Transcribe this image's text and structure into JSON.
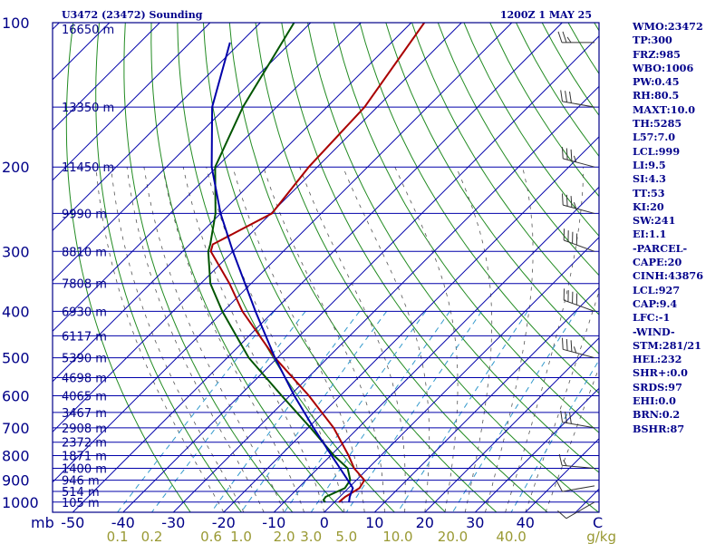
{
  "header": {
    "station": "U3472 (23472) Sounding",
    "valid": "1200Z  1 MAY 25"
  },
  "indices": [
    "WMO:23472",
    "TP:300",
    "FRZ:985",
    "WBO:1006",
    "PW:0.45",
    "RH:80.5",
    "MAXT:10.0",
    "TH:5285",
    "L57:7.0",
    "LCL:999",
    "LI:9.5",
    "SI:4.3",
    "TT:53",
    "KI:20",
    "SW:241",
    "EI:1.1",
    "-PARCEL-",
    "CAPE:20",
    "CINH:43876",
    "LCL:927",
    "CAP:9.4",
    "LFC:-1",
    "-WIND-",
    "STM:281/21",
    "HEL:232",
    "SHR+:0.0",
    "SRDS:97",
    "EHI:0.0",
    "BRN:0.2",
    "BSHR:87"
  ],
  "colors": {
    "isobar": "#0000aa",
    "isotherm": "#0000aa",
    "dry_adiabat": "#228b22",
    "mixing_ratio": "#3399cc",
    "moist_adiabat": "#555555",
    "temperature": "#aa0000",
    "dewpoint": "#005500",
    "parcel": "#0000aa",
    "label_blue": "#000088",
    "label_mixing": "#999933",
    "wind": "#333333"
  },
  "chart_data": {
    "type": "skew-t log-p sounding",
    "y_axis": {
      "quantity": "pressure",
      "unit": "mb",
      "scale": "log",
      "range": [
        1050,
        100
      ],
      "ticks": [
        100,
        200,
        300,
        400,
        500,
        600,
        700,
        800,
        900,
        1000
      ]
    },
    "x_axis": {
      "quantity": "temperature",
      "unit": "C",
      "skewed": true,
      "ticks": [
        -50,
        -40,
        -30,
        -20,
        -10,
        0,
        10,
        20,
        30,
        40
      ],
      "tick_labels": [
        "-50",
        "-40",
        "-30",
        "-20",
        "-10",
        "0",
        "10",
        "20",
        "30",
        "40"
      ],
      "unit_label": "mb",
      "corner_label": "C"
    },
    "mixing_ratio_axis": {
      "unit": "g/kg",
      "ticks": [
        0.1,
        0.2,
        0.6,
        1.0,
        2.0,
        3.0,
        5.0,
        10.0,
        20.0,
        40.0
      ],
      "tick_labels": [
        "0.1",
        "0.2",
        "0.6",
        "1.0",
        "2.0",
        "3.0",
        "5.0",
        "10.0",
        "20.0",
        "40.0"
      ]
    },
    "height_labels": [
      {
        "p": 103,
        "label": "16650 m"
      },
      {
        "p": 150,
        "label": "13350 m"
      },
      {
        "p": 200,
        "label": "11450 m"
      },
      {
        "p": 250,
        "label": "9990 m"
      },
      {
        "p": 300,
        "label": "8810 m"
      },
      {
        "p": 350,
        "label": "7808 m"
      },
      {
        "p": 400,
        "label": "6930 m"
      },
      {
        "p": 450,
        "label": "6117 m"
      },
      {
        "p": 500,
        "label": "5390 m"
      },
      {
        "p": 550,
        "label": "4698 m"
      },
      {
        "p": 600,
        "label": "4065 m"
      },
      {
        "p": 650,
        "label": "3467 m"
      },
      {
        "p": 700,
        "label": "2908 m"
      },
      {
        "p": 750,
        "label": "2372 m"
      },
      {
        "p": 800,
        "label": "1871 m"
      },
      {
        "p": 850,
        "label": "1400 m"
      },
      {
        "p": 900,
        "label": "946 m"
      },
      {
        "p": 950,
        "label": "514 m"
      },
      {
        "p": 1000,
        "label": "105 m"
      }
    ],
    "series": [
      {
        "points": [
          {
            "p": 100,
            "t": -77.4
          },
          {
            "p": 150,
            "t": -72.5
          },
          {
            "p": 200,
            "t": -71.7
          },
          {
            "p": 250,
            "t": -69.8
          },
          {
            "p": 290,
            "t": -75.4
          },
          {
            "p": 300,
            "t": -74.4
          },
          {
            "p": 350,
            "t": -64.3
          },
          {
            "p": 400,
            "t": -56.2
          },
          {
            "p": 500,
            "t": -40.5
          },
          {
            "p": 600,
            "t": -26.2
          },
          {
            "p": 700,
            "t": -14.9
          },
          {
            "p": 800,
            "t": -6.4
          },
          {
            "p": 850,
            "t": -2.8
          },
          {
            "p": 900,
            "t": 1.6
          },
          {
            "p": 935,
            "t": 2.2
          },
          {
            "p": 975,
            "t": 1.1
          },
          {
            "p": 1000,
            "t": 0.9
          }
        ]
      },
      {
        "points": [
          {
            "p": 100,
            "t": -103.3
          },
          {
            "p": 150,
            "t": -96.7
          },
          {
            "p": 200,
            "t": -90.3
          },
          {
            "p": 250,
            "t": -81.0
          },
          {
            "p": 290,
            "t": -75.9
          },
          {
            "p": 300,
            "t": -74.9
          },
          {
            "p": 350,
            "t": -68.1
          },
          {
            "p": 400,
            "t": -60.2
          },
          {
            "p": 500,
            "t": -45.7
          },
          {
            "p": 600,
            "t": -31.6
          },
          {
            "p": 700,
            "t": -19.5
          },
          {
            "p": 800,
            "t": -9.3
          },
          {
            "p": 850,
            "t": -4.1
          },
          {
            "p": 900,
            "t": -1.2
          },
          {
            "p": 935,
            "t": -0.7
          },
          {
            "p": 975,
            "t": -2.8
          },
          {
            "p": 990,
            "t": -2.6
          },
          {
            "p": 1000,
            "t": -1.8
          }
        ]
      },
      {
        "points": [
          {
            "p": 110,
            "t": -112.1
          },
          {
            "p": 150,
            "t": -102.8
          },
          {
            "p": 200,
            "t": -91.0
          },
          {
            "p": 250,
            "t": -80.0
          },
          {
            "p": 300,
            "t": -70.0
          },
          {
            "p": 400,
            "t": -53.6
          },
          {
            "p": 500,
            "t": -40.5
          },
          {
            "p": 600,
            "t": -29.1
          },
          {
            "p": 700,
            "t": -18.9
          },
          {
            "p": 800,
            "t": -9.8
          },
          {
            "p": 850,
            "t": -5.6
          },
          {
            "p": 900,
            "t": -1.7
          },
          {
            "p": 935,
            "t": 0.9
          },
          {
            "p": 975,
            "t": 2.0
          },
          {
            "p": 1000,
            "t": 2.9
          }
        ]
      }
    ],
    "winds": [
      {
        "p": 110,
        "dir": 270,
        "spd": 25
      },
      {
        "p": 150,
        "dir": 280,
        "spd": 30
      },
      {
        "p": 200,
        "dir": 285,
        "spd": 35
      },
      {
        "p": 250,
        "dir": 285,
        "spd": 35
      },
      {
        "p": 300,
        "dir": 290,
        "spd": 40
      },
      {
        "p": 400,
        "dir": 290,
        "spd": 40
      },
      {
        "p": 500,
        "dir": 285,
        "spd": 35
      },
      {
        "p": 700,
        "dir": 280,
        "spd": 30
      },
      {
        "p": 850,
        "dir": 275,
        "spd": 15
      },
      {
        "p": 925,
        "dir": 260,
        "spd": 10
      },
      {
        "p": 1000,
        "dir": 240,
        "spd": 10
      }
    ]
  }
}
